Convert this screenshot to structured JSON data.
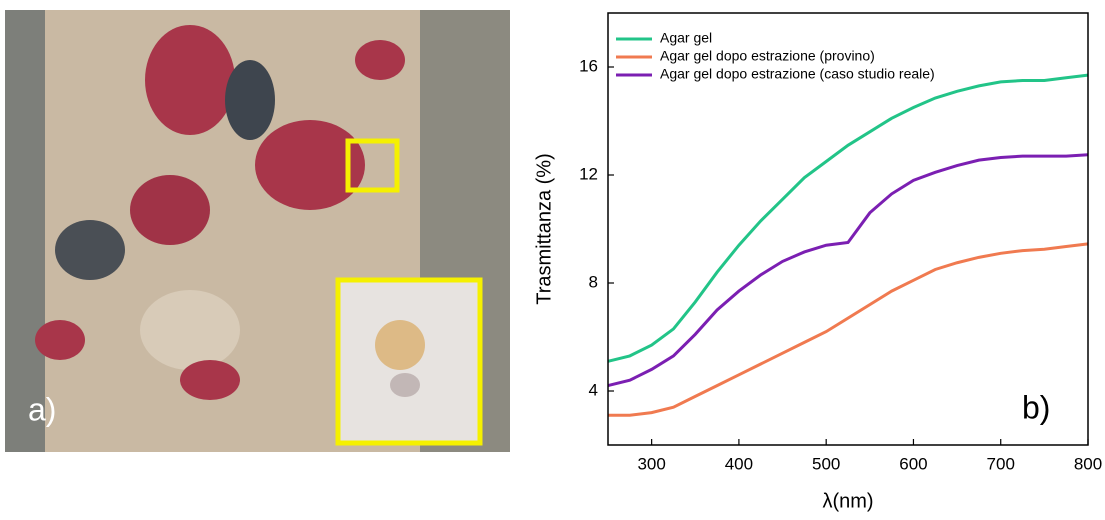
{
  "image_panel": {
    "label": "a)"
  },
  "chart_data": {
    "type": "line",
    "xlabel": "λ(nm)",
    "ylabel": "Trasmittanza (%)",
    "annotation": "b)",
    "x": [
      250,
      275,
      300,
      325,
      350,
      375,
      400,
      425,
      450,
      475,
      500,
      525,
      550,
      575,
      600,
      625,
      650,
      675,
      700,
      725,
      750,
      775,
      800
    ],
    "series": [
      {
        "name": "Agar gel",
        "color": "#22c488",
        "values": [
          5.1,
          5.3,
          5.7,
          6.3,
          7.3,
          8.4,
          9.4,
          10.3,
          11.1,
          11.9,
          12.5,
          13.1,
          13.6,
          14.1,
          14.5,
          14.85,
          15.1,
          15.3,
          15.45,
          15.5,
          15.5,
          15.6,
          15.7
        ]
      },
      {
        "name": "Agar gel dopo estrazione (provino)",
        "color": "#f07a50",
        "values": [
          3.1,
          3.1,
          3.2,
          3.4,
          3.8,
          4.2,
          4.6,
          5.0,
          5.4,
          5.8,
          6.2,
          6.7,
          7.2,
          7.7,
          8.1,
          8.5,
          8.75,
          8.95,
          9.1,
          9.2,
          9.25,
          9.35,
          9.45
        ]
      },
      {
        "name": "Agar gel dopo estrazione (caso studio reale)",
        "color": "#7b1fb2",
        "values": [
          4.2,
          4.4,
          4.8,
          5.3,
          6.1,
          7.0,
          7.7,
          8.3,
          8.8,
          9.15,
          9.4,
          9.5,
          10.6,
          11.3,
          11.8,
          12.1,
          12.35,
          12.55,
          12.65,
          12.7,
          12.7,
          12.7,
          12.75
        ]
      }
    ],
    "xlim": [
      250,
      800
    ],
    "xticks": [
      300,
      400,
      500,
      600,
      700,
      800
    ],
    "ylim": [
      2,
      18
    ],
    "yticks": [
      4,
      8,
      12,
      16
    ],
    "legend": "upper-left"
  }
}
